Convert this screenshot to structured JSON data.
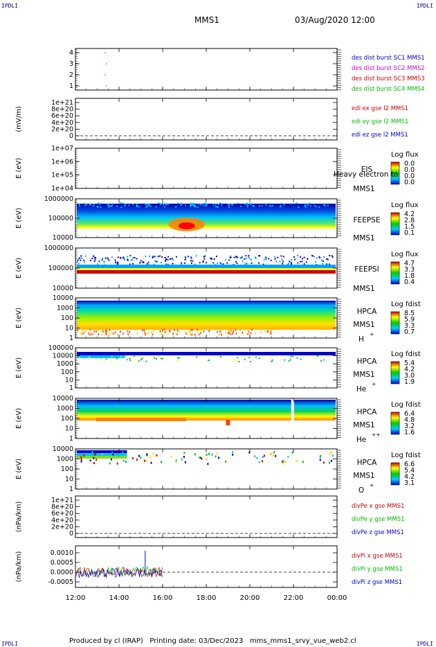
{
  "corner_label": "IPDLI",
  "header": {
    "mission": "MMS1",
    "datetime": "03/Aug/2020 12:00"
  },
  "footer": "Produced by cl (IRAP)   Printing date: 03/Dec/2023   mms_mms1_srvy_vue_web2.cl",
  "colors": {
    "blue": "#0000cc",
    "magenta": "#cc00cc",
    "red": "#cc0000",
    "green": "#00bb00"
  },
  "chart_data": {
    "type": "heatmap",
    "x_ticks": [
      "12:00",
      "14:00",
      "16:00",
      "18:00",
      "20:00",
      "22:00",
      "00:00"
    ],
    "x_range_hours": [
      12,
      24
    ],
    "panels": [
      {
        "id": "sc",
        "type": "scatter",
        "ylabel": "",
        "yticks": [
          "4",
          "3",
          "2",
          "1"
        ],
        "legend": [
          {
            "text": "des dist burst SC1 MMS1",
            "color": "#0000cc"
          },
          {
            "text": "des dist burst SC2 MMS2",
            "color": "#cc00cc"
          },
          {
            "text": "des dist burst SC3 MMS3",
            "color": "#cc0000"
          },
          {
            "text": "des dist burst SC4 MMS4",
            "color": "#00bb00"
          }
        ],
        "points": [
          {
            "x": 13.35,
            "y": 4
          },
          {
            "x": 13.4,
            "y": 3
          },
          {
            "x": 13.35,
            "y": 2
          },
          {
            "x": 13.4,
            "y": 1
          }
        ]
      },
      {
        "id": "edi",
        "type": "line",
        "ylabel": "(mV/m)",
        "yticks": [
          "1e+21",
          "8e+20",
          "6e+20",
          "4e+20",
          "2e+20",
          "0"
        ],
        "legend": [
          {
            "text": "edi ex gse l2 MMS1",
            "color": "#cc0000"
          },
          {
            "text": "edi ey gse l2 MMS1",
            "color": "#00bb00"
          },
          {
            "text": "edi ez gse l2 MMS1",
            "color": "#0000cc"
          }
        ]
      },
      {
        "id": "eis",
        "type": "heatmap",
        "ylabel": "E (eV)",
        "yticks": [
          "1e+07",
          "1e+06",
          "1e+05",
          "1e+04"
        ],
        "inst": [
          "EIS",
          "MMS1"
        ],
        "overlay": "Heavy electron to",
        "cbar_title": "Log flux",
        "cbar_ticks": [
          "0.0",
          "0.0",
          "0.0",
          "0.0"
        ]
      },
      {
        "id": "feepse",
        "type": "heatmap",
        "ylabel": "E (eV)",
        "yticks": [
          "1000000",
          "100000",
          "10000"
        ],
        "inst": [
          "FEEPSE",
          "MMS1"
        ],
        "cbar_title": "Log flux",
        "cbar_ticks": [
          "4.2",
          "2.8",
          "1.5",
          "0.1"
        ]
      },
      {
        "id": "feepsi",
        "type": "heatmap",
        "ylabel": "E (eV)",
        "yticks": [
          "1000000",
          "100000",
          "10000"
        ],
        "inst": [
          "FEEPSI",
          "MMS1"
        ],
        "cbar_title": "Log flux",
        "cbar_ticks": [
          "4.7",
          "3.3",
          "1.8",
          "0.4"
        ]
      },
      {
        "id": "hpcah",
        "type": "heatmap",
        "ylabel": "E (eV)",
        "yticks": [
          "10000",
          "1000",
          "100",
          "10",
          "1"
        ],
        "inst": [
          "HPCA",
          "MMS1",
          "H",
          "+"
        ],
        "cbar_title": "Log fdist",
        "cbar_ticks": [
          "8.5",
          "5.9",
          "3.3",
          "0.7"
        ]
      },
      {
        "id": "hpcahe",
        "type": "heatmap",
        "ylabel": "E (eV)",
        "yticks": [
          "100000",
          "10000",
          "1000",
          "100",
          "10",
          "1"
        ],
        "inst": [
          "HPCA",
          "MMS1",
          "He",
          "+"
        ],
        "cbar_title": "Log fdist",
        "cbar_ticks": [
          "5.4",
          "4.2",
          "3.0",
          "1.9"
        ]
      },
      {
        "id": "hpcahepp",
        "type": "heatmap",
        "ylabel": "E (eV)",
        "yticks": [
          "10000",
          "1000",
          "100",
          "10",
          "1"
        ],
        "inst": [
          "HPCA",
          "MMS1",
          "He",
          "++"
        ],
        "cbar_title": "Log fdist",
        "cbar_ticks": [
          "6.4",
          "4.8",
          "3.2",
          "1.6"
        ]
      },
      {
        "id": "hpcao",
        "type": "heatmap",
        "ylabel": "E (eV)",
        "yticks": [
          "10000",
          "1000",
          "100",
          "10",
          "1"
        ],
        "inst": [
          "HPCA",
          "MMS1",
          "O",
          "+"
        ],
        "cbar_title": "Log fdist",
        "cbar_ticks": [
          "6.6",
          "5.4",
          "4.2",
          "3.1"
        ]
      },
      {
        "id": "divpe",
        "type": "line",
        "ylabel": "(nPa/km)",
        "yticks": [
          "1e+21",
          "8e+20",
          "6e+20",
          "4e+20",
          "2e+20",
          "0"
        ],
        "legend": [
          {
            "text": "divPe x gse MMS1",
            "color": "#cc0000"
          },
          {
            "text": "divPe y gse MMS1",
            "color": "#00bb00"
          },
          {
            "text": "divPe z gse MMS1",
            "color": "#0000cc"
          }
        ]
      },
      {
        "id": "divpi",
        "type": "line",
        "ylabel": "(nPa/km)",
        "yticks": [
          "0.0010",
          "0.0005",
          "0.0000",
          "-0.0005"
        ],
        "legend": [
          {
            "text": "divPi x gse MMS1",
            "color": "#cc0000"
          },
          {
            "text": "divPi y gse MMS1",
            "color": "#00bb00"
          },
          {
            "text": "divPi z gse MMS1",
            "color": "#0000cc"
          }
        ],
        "x_data_end_hours": 16.0,
        "spike_hours": 15.2,
        "spike_value": 0.0011
      }
    ]
  }
}
